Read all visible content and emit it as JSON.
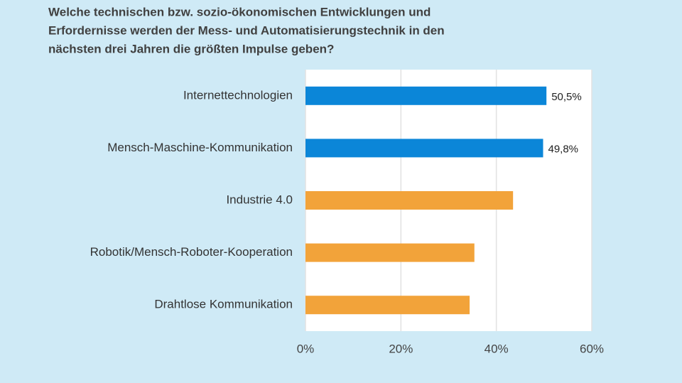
{
  "chart_data": {
    "type": "bar",
    "orientation": "horizontal",
    "title": [
      "Welche technischen bzw. sozio-ökonomischen Entwicklungen und",
      "Erfordernisse werden der Mess- und Automatisierungstechnik in den",
      "nächsten drei Jahren die größten Impulse geben?"
    ],
    "categories": [
      "Internettechnologien",
      "Mensch-Maschine-Kommunikation",
      "Industrie 4.0",
      "Robotik/Mensch-Roboter-Kooperation",
      "Drahtlose Kommunikation"
    ],
    "values": [
      50.5,
      49.8,
      43.5,
      35.4,
      34.4
    ],
    "value_labels": [
      "50,5%",
      "49,8%",
      null,
      null,
      null
    ],
    "colors": [
      "#0b86d8",
      "#0b86d8",
      "#f2a33a",
      "#f2a33a",
      "#f2a33a"
    ],
    "xlim": [
      0,
      60
    ],
    "xticks": [
      {
        "value": 0,
        "label": "0%"
      },
      {
        "value": 20,
        "label": "20%"
      },
      {
        "value": 40,
        "label": "40%"
      },
      {
        "value": 60,
        "label": "60%"
      }
    ],
    "grid": true
  }
}
